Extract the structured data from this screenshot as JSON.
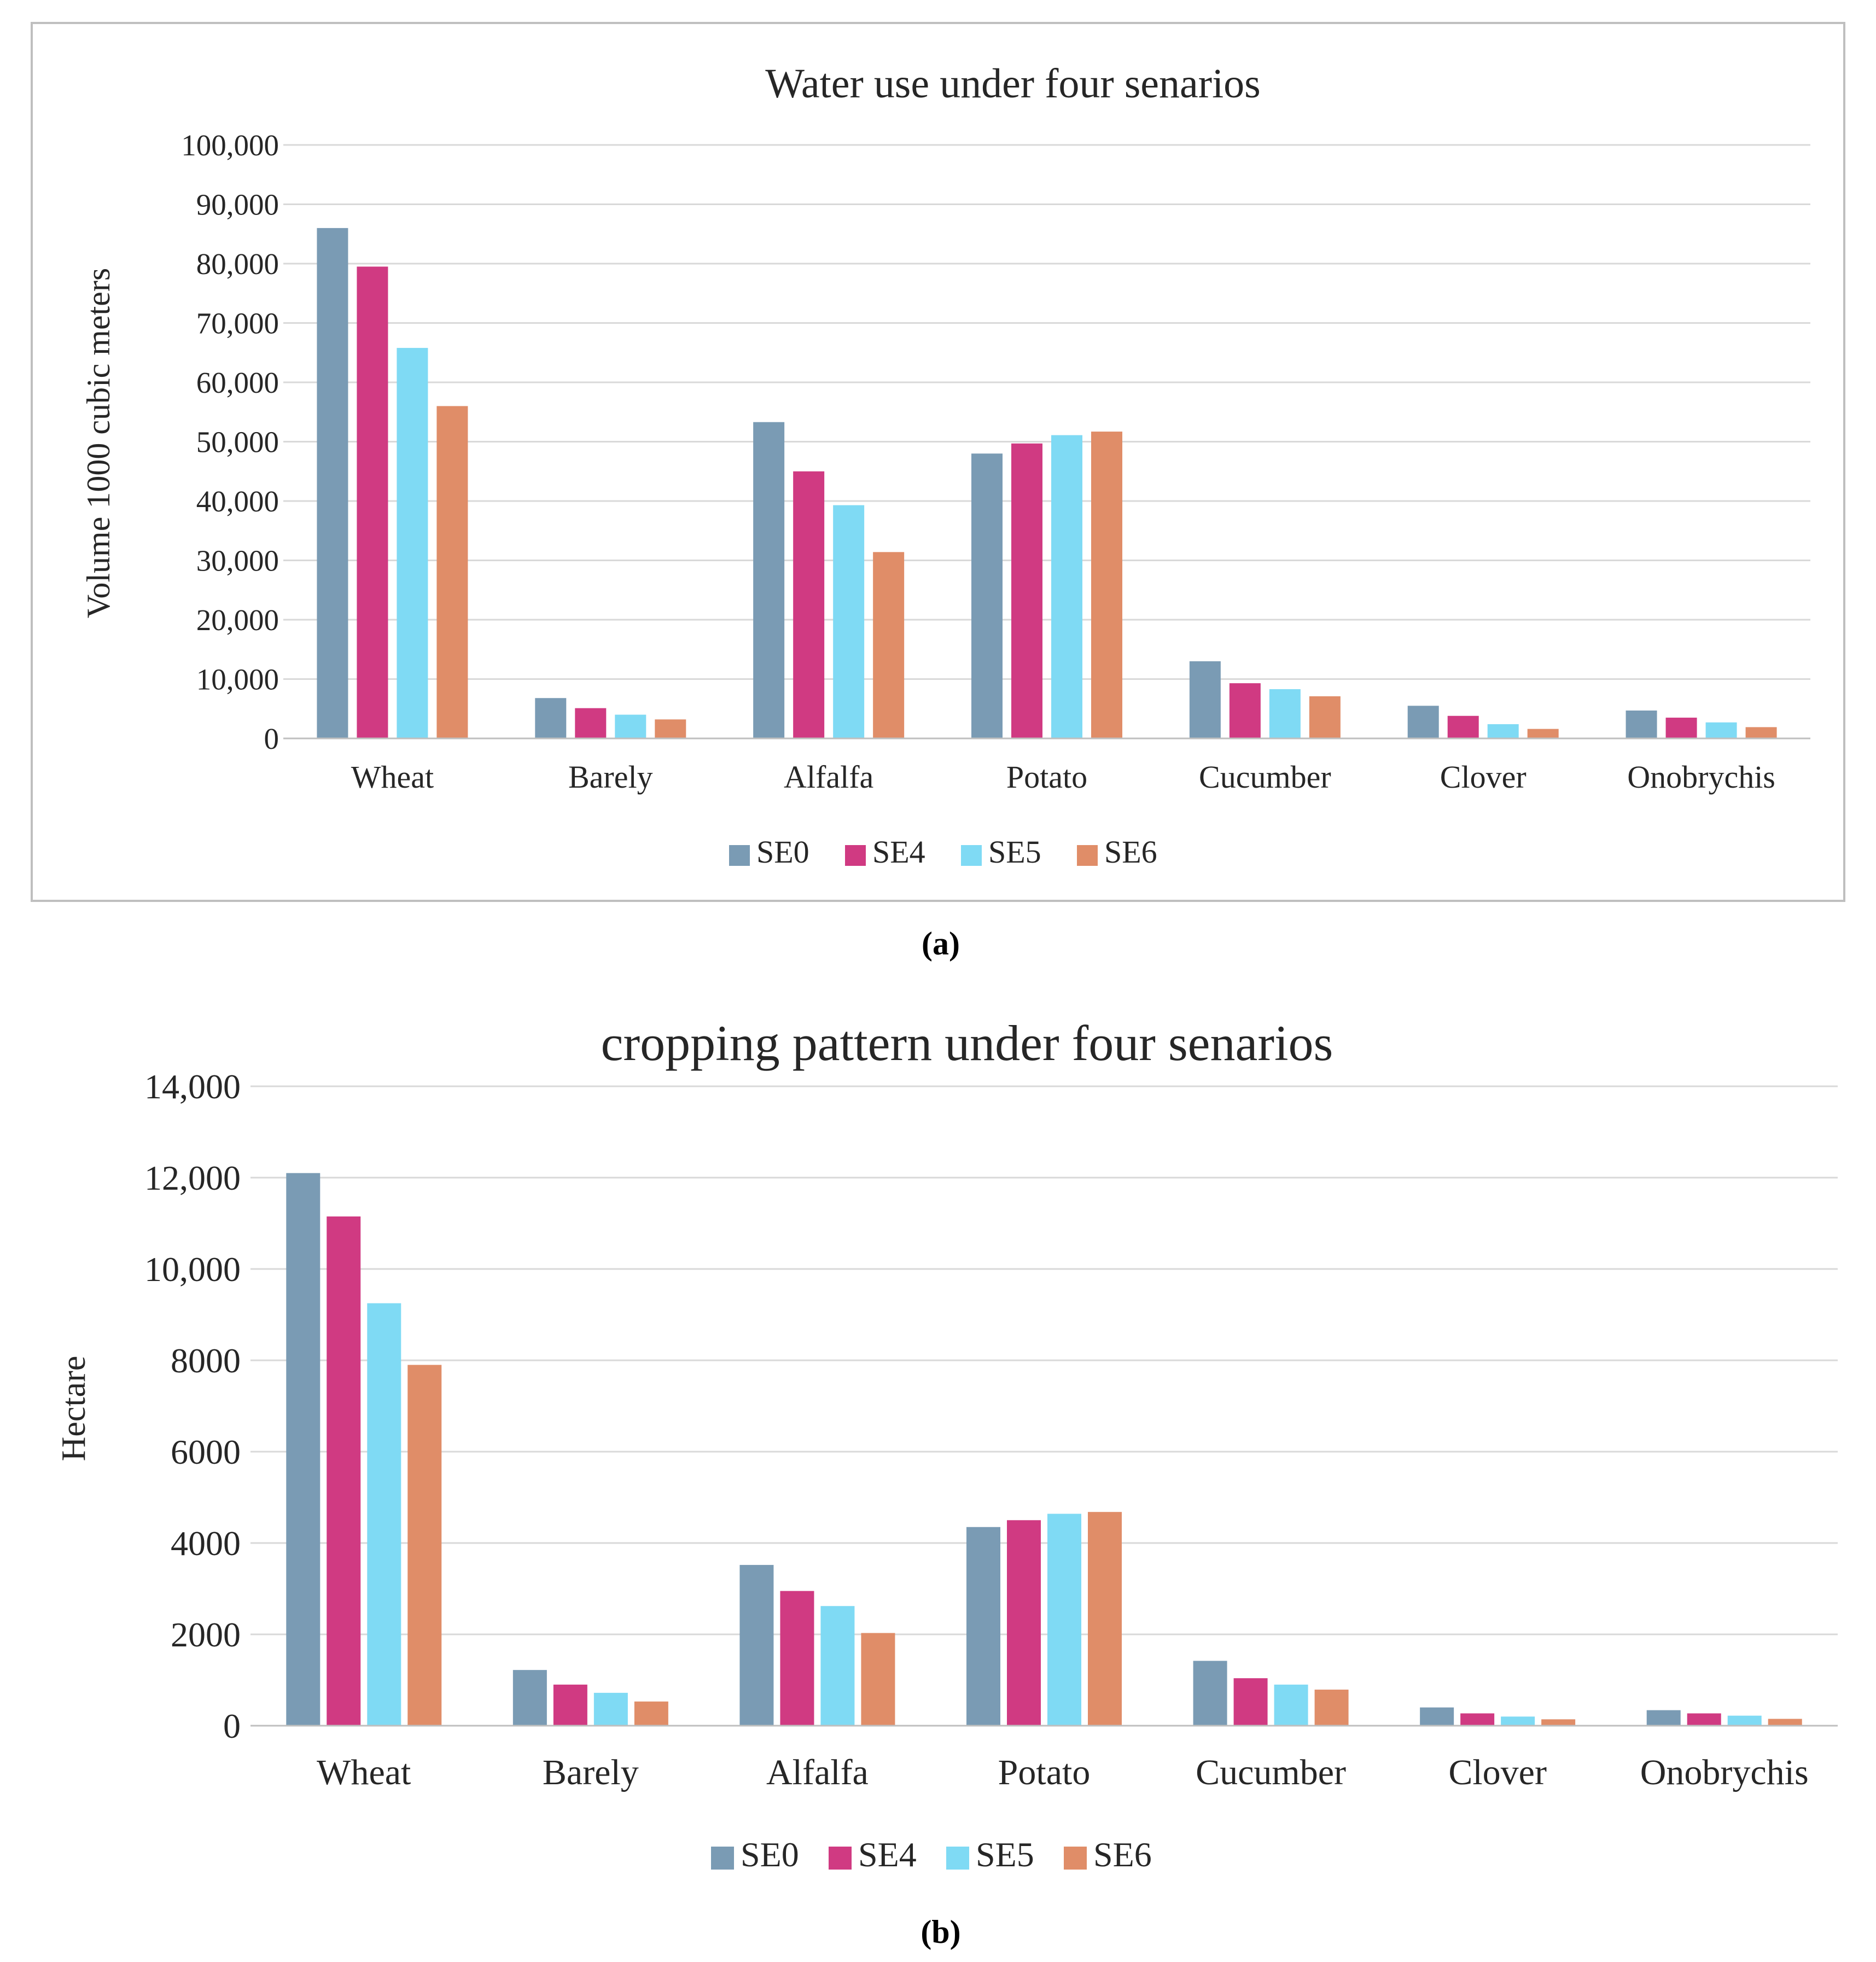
{
  "colors": {
    "SE0": "#7a9bb4",
    "SE4": "#d03a82",
    "SE5": "#7fdaf4",
    "SE6": "#e08d68"
  },
  "panel_labels": [
    "(a)",
    "(b)"
  ],
  "chart_data": [
    {
      "type": "bar",
      "title": "Water use under four senarios",
      "xlabel": "",
      "ylabel": "Volume 1000 cubic meters",
      "ylim": [
        0,
        100000
      ],
      "yticks": [
        "0",
        "10,000",
        "20,000",
        "30,000",
        "40,000",
        "50,000",
        "60,000",
        "70,000",
        "80,000",
        "90,000",
        "100,000"
      ],
      "grid": true,
      "legend_position": "bottom",
      "categories": [
        "Wheat",
        "Barely",
        "Alfalfa",
        "Potato",
        "Cucumber",
        "Clover",
        "Onobrychis"
      ],
      "series": [
        {
          "name": "SE0",
          "values": [
            86000,
            6800,
            53300,
            48000,
            13000,
            5500,
            4700
          ]
        },
        {
          "name": "SE4",
          "values": [
            79500,
            5100,
            45000,
            49700,
            9300,
            3800,
            3500
          ]
        },
        {
          "name": "SE5",
          "values": [
            65800,
            4000,
            39300,
            51100,
            8300,
            2400,
            2700
          ]
        },
        {
          "name": "SE6",
          "values": [
            56000,
            3200,
            31400,
            51700,
            7100,
            1600,
            1900
          ]
        }
      ]
    },
    {
      "type": "bar",
      "title": "cropping pattern under four senarios",
      "xlabel": "",
      "ylabel": "Hectare",
      "ylim": [
        0,
        14000
      ],
      "yticks": [
        "0",
        "2000",
        "4000",
        "6000",
        "8000",
        "10,000",
        "12,000",
        "14,000"
      ],
      "grid": true,
      "legend_position": "bottom",
      "categories": [
        "Wheat",
        "Barely",
        "Alfalfa",
        "Potato",
        "Cucumber",
        "Clover",
        "Onobrychis"
      ],
      "series": [
        {
          "name": "SE0",
          "values": [
            12100,
            1220,
            3520,
            4350,
            1420,
            400,
            340
          ]
        },
        {
          "name": "SE4",
          "values": [
            11150,
            900,
            2950,
            4500,
            1040,
            270,
            270
          ]
        },
        {
          "name": "SE5",
          "values": [
            9250,
            720,
            2620,
            4640,
            900,
            200,
            220
          ]
        },
        {
          "name": "SE6",
          "values": [
            7900,
            530,
            2030,
            4680,
            790,
            140,
            150
          ]
        }
      ]
    }
  ]
}
